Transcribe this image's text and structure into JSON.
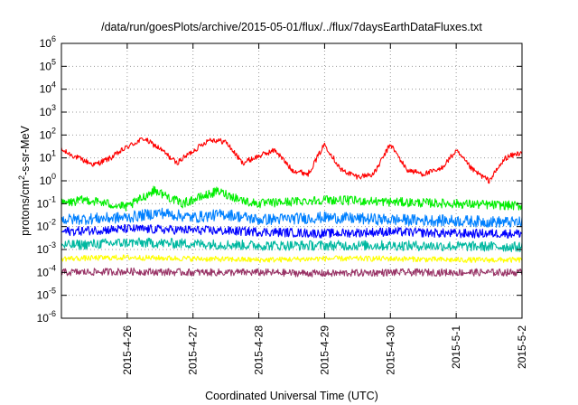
{
  "chart_data": {
    "type": "line",
    "title": "/data/run/goesPlots/archive/2015-05-01/flux/../flux/7daysEarthDataFluxes.txt",
    "xlabel": "Coordinated Universal Time (UTC)",
    "ylabel": "protons/cm2-s-sr-MeV",
    "ylabel_parts": {
      "pre": "protons/cm",
      "sup": "2",
      "post": "-s-sr-MeV"
    },
    "yscale": "log",
    "ylim": [
      1e-06,
      1000000.0
    ],
    "xlim": [
      "2015-04-25",
      "2015-05-02"
    ],
    "grid": true,
    "y_ticks": [
      {
        "base": "10",
        "exp": "-6",
        "value": 1e-06
      },
      {
        "base": "10",
        "exp": "-5",
        "value": 1e-05
      },
      {
        "base": "10",
        "exp": "-4",
        "value": 0.0001
      },
      {
        "base": "10",
        "exp": "-3",
        "value": 0.001
      },
      {
        "base": "10",
        "exp": "-2",
        "value": 0.01
      },
      {
        "base": "10",
        "exp": "-1",
        "value": 0.1
      },
      {
        "base": "10",
        "exp": "0",
        "value": 1
      },
      {
        "base": "10",
        "exp": "1",
        "value": 10
      },
      {
        "base": "10",
        "exp": "2",
        "value": 100
      },
      {
        "base": "10",
        "exp": "3",
        "value": 1000
      },
      {
        "base": "10",
        "exp": "4",
        "value": 10000
      },
      {
        "base": "10",
        "exp": "5",
        "value": 100000
      },
      {
        "base": "10",
        "exp": "6",
        "value": 1000000
      }
    ],
    "x_ticks": [
      {
        "label": "2015-4-26",
        "date": "2015-04-26"
      },
      {
        "label": "2015-4-27",
        "date": "2015-04-27"
      },
      {
        "label": "2015-4-28",
        "date": "2015-04-28"
      },
      {
        "label": "2015-4-29",
        "date": "2015-04-29"
      },
      {
        "label": "2015-4-30",
        "date": "2015-04-30"
      },
      {
        "label": "2015-5-1",
        "date": "2015-05-01"
      },
      {
        "label": "2015-5-2",
        "date": "2015-05-02"
      }
    ],
    "series": [
      {
        "color": "#ff0000",
        "noise_decades": 0.12,
        "points": [
          [
            "2015-04-25",
            22
          ],
          [
            "2015-04-25T06:00",
            10
          ],
          [
            "2015-04-25T12:00",
            5
          ],
          [
            "2015-04-25T18:00",
            10
          ],
          [
            "2015-04-26",
            30
          ],
          [
            "2015-04-26T06:00",
            70
          ],
          [
            "2015-04-26T12:00",
            25
          ],
          [
            "2015-04-26T18:00",
            6
          ],
          [
            "2015-04-27",
            20
          ],
          [
            "2015-04-27T06:00",
            65
          ],
          [
            "2015-04-27T12:00",
            50
          ],
          [
            "2015-04-27T18:00",
            6
          ],
          [
            "2015-04-28",
            12
          ],
          [
            "2015-04-28T06:00",
            22
          ],
          [
            "2015-04-28T12:00",
            3
          ],
          [
            "2015-04-28T18:00",
            2
          ],
          [
            "2015-04-29",
            40
          ],
          [
            "2015-04-29T06:00",
            3
          ],
          [
            "2015-04-29T12:00",
            1.5
          ],
          [
            "2015-04-29T18:00",
            2
          ],
          [
            "2015-04-30",
            40
          ],
          [
            "2015-04-30T06:00",
            3
          ],
          [
            "2015-04-30T12:00",
            2
          ],
          [
            "2015-04-30T18:00",
            3
          ],
          [
            "2015-05-01",
            20
          ],
          [
            "2015-05-01T06:00",
            3
          ],
          [
            "2015-05-01T12:00",
            1
          ],
          [
            "2015-05-01T18:00",
            10
          ],
          [
            "2015-05-02",
            18
          ]
        ]
      },
      {
        "color": "#00ee00",
        "noise_decades": 0.2,
        "points": [
          [
            "2015-04-25",
            0.1
          ],
          [
            "2015-04-25T09:00",
            0.15
          ],
          [
            "2015-04-26",
            0.07
          ],
          [
            "2015-04-26T10:00",
            0.4
          ],
          [
            "2015-04-26T20:00",
            0.1
          ],
          [
            "2015-04-27T09:00",
            0.35
          ],
          [
            "2015-04-27T20:00",
            0.12
          ],
          [
            "2015-04-28",
            0.1
          ],
          [
            "2015-04-29",
            0.15
          ],
          [
            "2015-04-30",
            0.12
          ],
          [
            "2015-05-01",
            0.1
          ],
          [
            "2015-05-02",
            0.08
          ]
        ]
      },
      {
        "color": "#0080ff",
        "noise_decades": 0.25,
        "points": [
          [
            "2015-04-25",
            0.02
          ],
          [
            "2015-04-26",
            0.025
          ],
          [
            "2015-04-26T12:00",
            0.04
          ],
          [
            "2015-04-27",
            0.025
          ],
          [
            "2015-04-27T12:00",
            0.035
          ],
          [
            "2015-04-28",
            0.02
          ],
          [
            "2015-04-29",
            0.025
          ],
          [
            "2015-04-30",
            0.02
          ],
          [
            "2015-05-01",
            0.018
          ],
          [
            "2015-05-02",
            0.015
          ]
        ]
      },
      {
        "color": "#0000ff",
        "noise_decades": 0.2,
        "points": [
          [
            "2015-04-25",
            0.006
          ],
          [
            "2015-04-26",
            0.008
          ],
          [
            "2015-04-27",
            0.007
          ],
          [
            "2015-04-28",
            0.006
          ],
          [
            "2015-04-29",
            0.005
          ],
          [
            "2015-04-30",
            0.006
          ],
          [
            "2015-05-01",
            0.005
          ],
          [
            "2015-05-02",
            0.005
          ]
        ]
      },
      {
        "color": "#00b8a0",
        "noise_decades": 0.22,
        "points": [
          [
            "2015-04-25",
            0.0015
          ],
          [
            "2015-04-26",
            0.002
          ],
          [
            "2015-04-27",
            0.0018
          ],
          [
            "2015-04-28",
            0.0015
          ],
          [
            "2015-04-29",
            0.0015
          ],
          [
            "2015-04-30",
            0.0015
          ],
          [
            "2015-05-01",
            0.0014
          ],
          [
            "2015-05-02",
            0.0013
          ]
        ]
      },
      {
        "color": "#ffff00",
        "noise_decades": 0.12,
        "points": [
          [
            "2015-04-25",
            0.0004
          ],
          [
            "2015-04-26",
            0.00045
          ],
          [
            "2015-04-27",
            0.0004
          ],
          [
            "2015-04-28",
            0.00035
          ],
          [
            "2015-04-29",
            0.0004
          ],
          [
            "2015-04-30",
            0.0004
          ],
          [
            "2015-05-01",
            0.00035
          ],
          [
            "2015-05-02",
            0.00035
          ]
        ]
      },
      {
        "color": "#993366",
        "noise_decades": 0.16,
        "points": [
          [
            "2015-04-25",
            0.0001
          ],
          [
            "2015-04-26",
            0.00011
          ],
          [
            "2015-04-27",
            0.0001
          ],
          [
            "2015-04-28",
            0.0001
          ],
          [
            "2015-04-29",
            9e-05
          ],
          [
            "2015-04-30",
            0.0001
          ],
          [
            "2015-05-01",
            0.0001
          ],
          [
            "2015-05-02",
            0.0001
          ]
        ]
      }
    ]
  }
}
